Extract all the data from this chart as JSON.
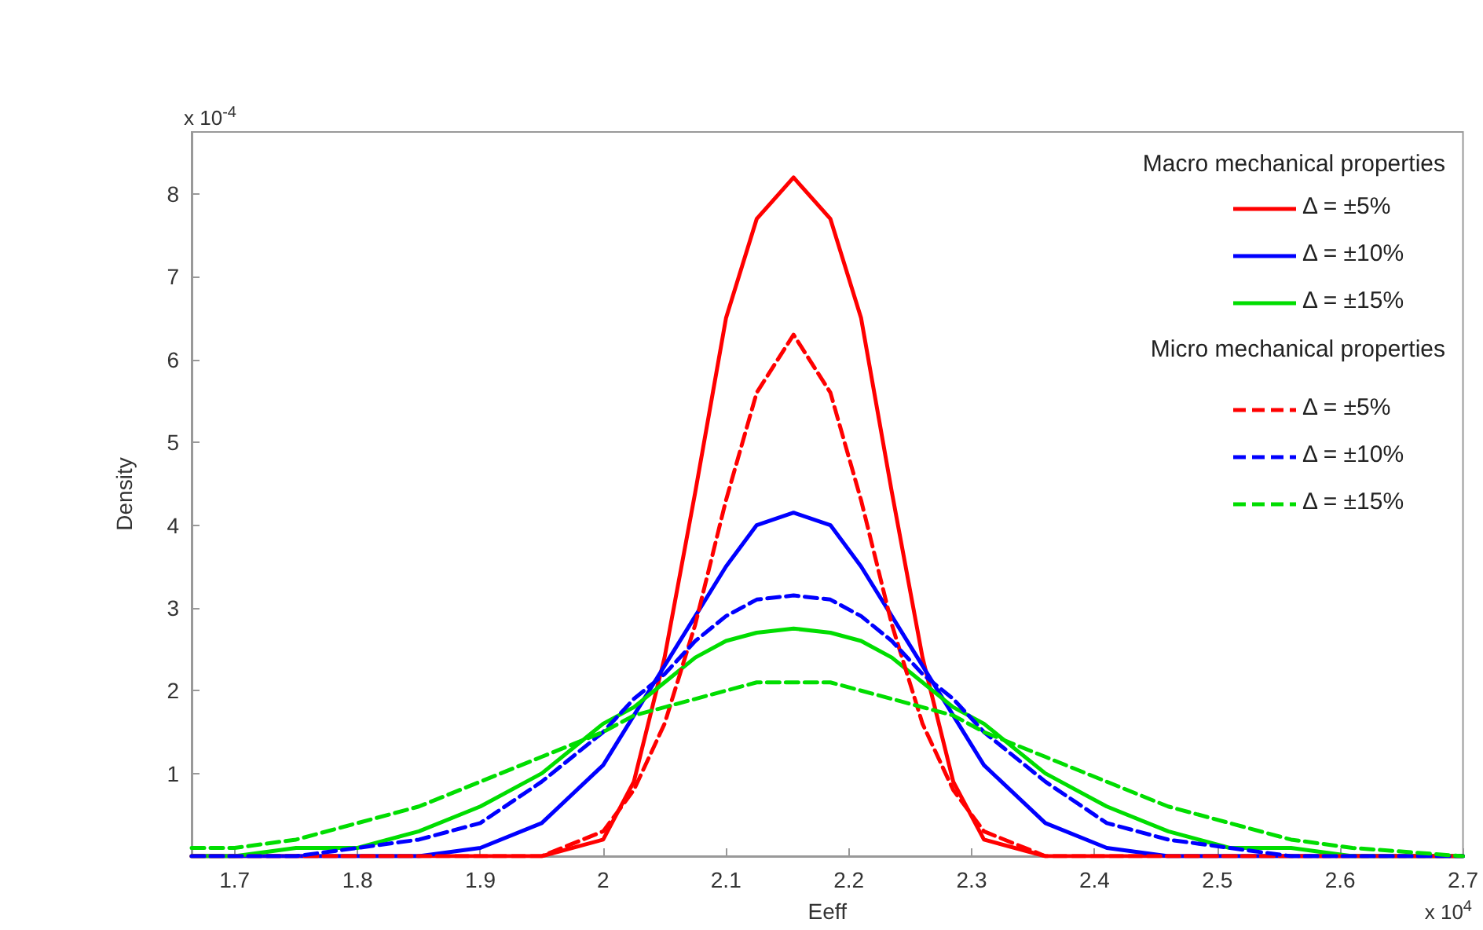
{
  "chart_data": {
    "type": "line",
    "xlabel": "Eeff",
    "ylabel": "Density",
    "legend_title": "Macro mechanical properties",
    "annotations": [
      "Micro mechanical properties",
      "x 10$^{-4}$",
      "x 10$^{4}$"
    ],
    "x": [
      1.665,
      1.7,
      1.75,
      1.8,
      1.85,
      1.9,
      1.95,
      2.0,
      2.025,
      2.05,
      2.075,
      2.1,
      2.125,
      2.155,
      2.185,
      2.21,
      2.235,
      2.26,
      2.285,
      2.31,
      2.36,
      2.41,
      2.46,
      2.51,
      2.56,
      2.61,
      2.7
    ],
    "series": [
      {
        "name": "Δ = ±5%",
        "color": "#ff0000",
        "line_style": "solid",
        "values": [
          0,
          0,
          0,
          0,
          0,
          0,
          0,
          0.2,
          0.9,
          2.4,
          4.4,
          6.5,
          7.7,
          8.2,
          7.7,
          6.5,
          4.4,
          2.4,
          0.9,
          0.2,
          0,
          0,
          0,
          0,
          0,
          0,
          0
        ]
      },
      {
        "name": "Δ = ±10%",
        "color": "#0000ff",
        "line_style": "solid",
        "values": [
          0,
          0,
          0,
          0,
          0,
          0.1,
          0.4,
          1.1,
          1.7,
          2.3,
          2.9,
          3.5,
          4.0,
          4.15,
          4.0,
          3.5,
          2.9,
          2.3,
          1.7,
          1.1,
          0.4,
          0.1,
          0,
          0,
          0,
          0,
          0
        ]
      },
      {
        "name": "Δ = ±15%",
        "color": "#00dd00",
        "line_style": "solid",
        "values": [
          0,
          0,
          0.1,
          0.1,
          0.3,
          0.6,
          1.0,
          1.6,
          1.8,
          2.1,
          2.4,
          2.6,
          2.7,
          2.75,
          2.7,
          2.6,
          2.4,
          2.1,
          1.8,
          1.6,
          1.0,
          0.6,
          0.3,
          0.1,
          0.1,
          0,
          0
        ]
      },
      {
        "name": "Δ = ±5%",
        "color": "#ff0000",
        "line_style": "dashed",
        "values": [
          0,
          0,
          0,
          0,
          0,
          0,
          0,
          0.3,
          0.8,
          1.6,
          2.8,
          4.3,
          5.6,
          6.3,
          5.6,
          4.3,
          2.8,
          1.6,
          0.8,
          0.3,
          0,
          0,
          0,
          0,
          0,
          0,
          0
        ]
      },
      {
        "name": "Δ = ±10%",
        "color": "#0000ff",
        "line_style": "dashed",
        "values": [
          0,
          0,
          0,
          0.1,
          0.2,
          0.4,
          0.9,
          1.5,
          1.9,
          2.2,
          2.6,
          2.9,
          3.1,
          3.15,
          3.1,
          2.9,
          2.6,
          2.2,
          1.9,
          1.5,
          0.9,
          0.4,
          0.2,
          0.1,
          0,
          0,
          0
        ]
      },
      {
        "name": "Δ = ±15%",
        "color": "#00dd00",
        "line_style": "dashed",
        "values": [
          0.1,
          0.1,
          0.2,
          0.4,
          0.6,
          0.9,
          1.2,
          1.5,
          1.7,
          1.8,
          1.9,
          2.0,
          2.1,
          2.1,
          2.1,
          2.0,
          1.9,
          1.8,
          1.7,
          1.5,
          1.2,
          0.9,
          0.6,
          0.4,
          0.2,
          0.1,
          0
        ]
      }
    ],
    "xlim": [
      1.665,
      2.7
    ],
    "xticks": [
      1.7,
      1.8,
      1.9,
      2,
      2.1,
      2.2,
      2.3,
      2.4,
      2.5,
      2.6,
      2.7
    ],
    "ylim": [
      0,
      8.75
    ],
    "yticks": [
      1,
      2,
      3,
      4,
      5,
      6,
      7,
      8
    ],
    "grid": false,
    "legend": "top right",
    "marker": "none"
  }
}
